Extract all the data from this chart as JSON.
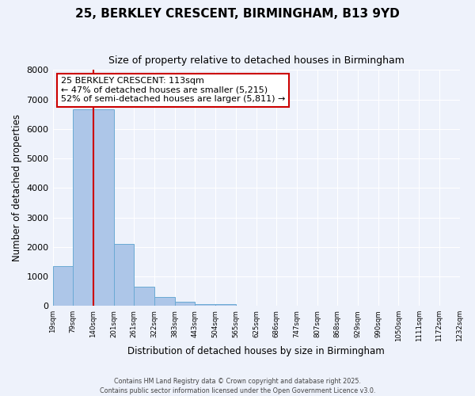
{
  "title": "25, BERKLEY CRESCENT, BIRMINGHAM, B13 9YD",
  "subtitle": "Size of property relative to detached houses in Birmingham",
  "bar_heights": [
    1340,
    6660,
    6660,
    2100,
    650,
    300,
    130,
    70,
    60,
    0,
    0,
    0,
    0,
    0,
    0,
    0,
    0,
    0,
    0,
    0
  ],
  "bin_labels": [
    "19sqm",
    "79sqm",
    "140sqm",
    "201sqm",
    "261sqm",
    "322sqm",
    "383sqm",
    "443sqm",
    "504sqm",
    "565sqm",
    "625sqm",
    "686sqm",
    "747sqm",
    "807sqm",
    "868sqm",
    "929sqm",
    "990sqm",
    "1050sqm",
    "1111sqm",
    "1172sqm",
    "1232sqm"
  ],
  "bar_color": "#adc6e8",
  "bar_edge_color": "#6aaad4",
  "vline_x": 2.0,
  "vline_color": "#cc0000",
  "ylabel": "Number of detached properties",
  "xlabel": "Distribution of detached houses by size in Birmingham",
  "ylim": [
    0,
    8000
  ],
  "yticks": [
    0,
    1000,
    2000,
    3000,
    4000,
    5000,
    6000,
    7000,
    8000
  ],
  "annotation_title": "25 BERKLEY CRESCENT: 113sqm",
  "annotation_line1": "← 47% of detached houses are smaller (5,215)",
  "annotation_line2": "52% of semi-detached houses are larger (5,811) →",
  "annotation_box_facecolor": "#ffffff",
  "annotation_box_edge": "#cc0000",
  "bg_color": "#eef2fb",
  "grid_color": "#ffffff",
  "footer1": "Contains HM Land Registry data © Crown copyright and database right 2025.",
  "footer2": "Contains public sector information licensed under the Open Government Licence v3.0."
}
